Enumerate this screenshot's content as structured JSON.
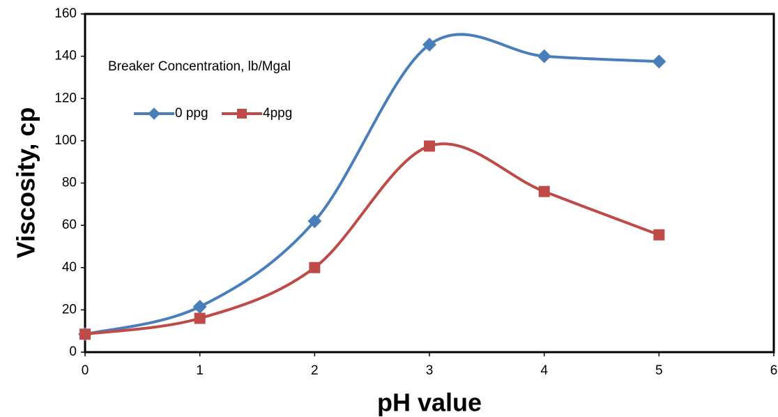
{
  "chart_data": {
    "type": "line",
    "smooth": true,
    "x_label": "pH value",
    "y_label": "Viscosity, cp",
    "legend_title": "Breaker Concentration, lb/Mgal",
    "x": [
      0,
      1,
      2,
      3,
      4,
      5
    ],
    "series": [
      {
        "name": "0 ppg",
        "color": "#4a7ebb",
        "marker": "diamond",
        "values": [
          8.5,
          21.5,
          62,
          145.5,
          140,
          137.5
        ]
      },
      {
        "name": "4ppg",
        "color": "#be4b48",
        "marker": "square",
        "values": [
          8.5,
          16,
          40,
          97.5,
          76,
          55.5
        ]
      }
    ],
    "xlim": [
      0,
      6
    ],
    "xticks": [
      0,
      1,
      2,
      3,
      4,
      5,
      6
    ],
    "ylim": [
      0,
      160
    ],
    "yticks": [
      0,
      20,
      40,
      60,
      80,
      100,
      120,
      140,
      160
    ],
    "grid": false
  }
}
